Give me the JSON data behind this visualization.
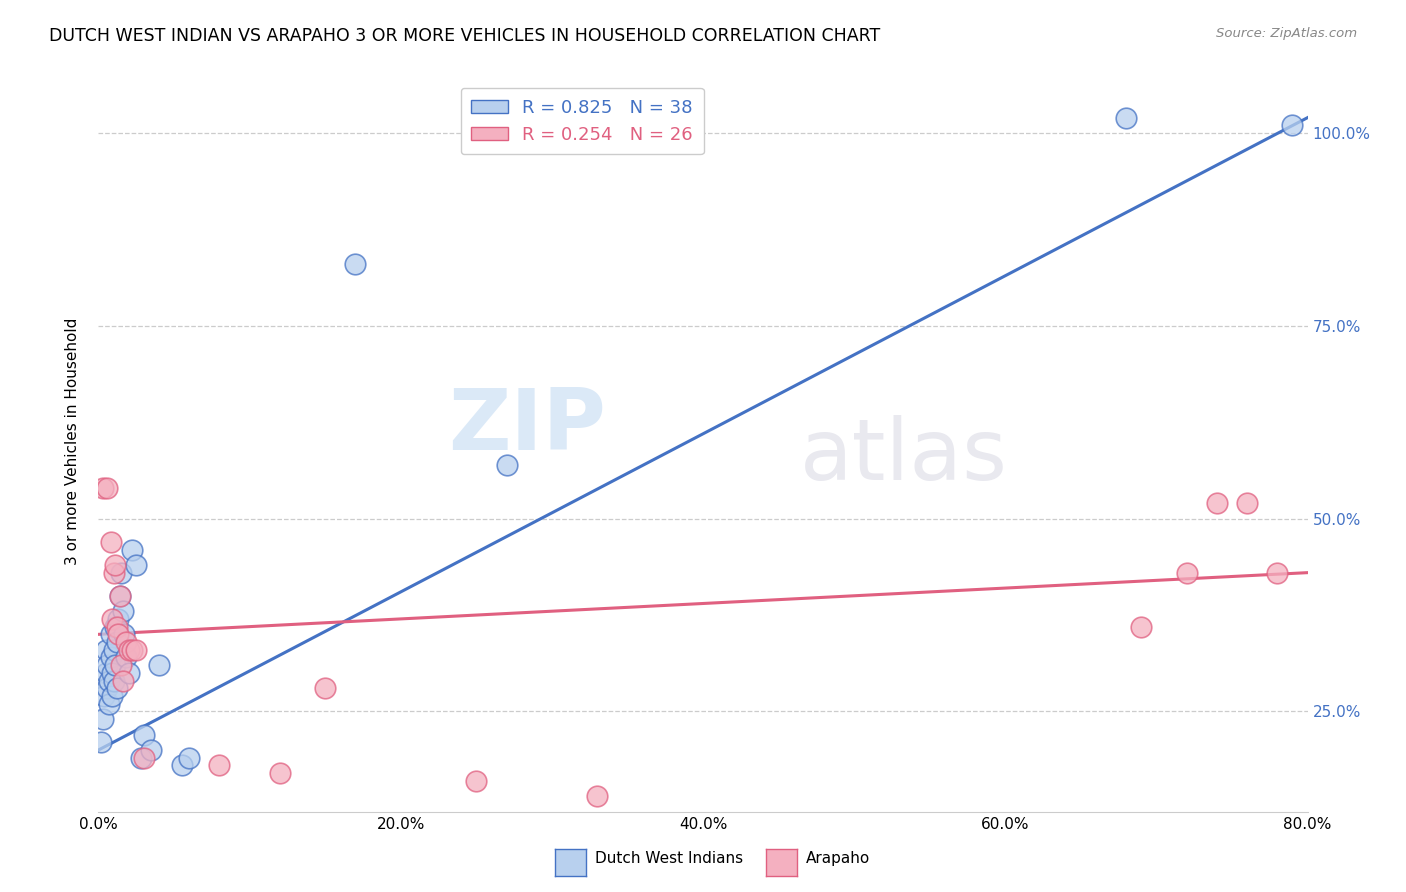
{
  "title": "DUTCH WEST INDIAN VS ARAPAHO 3 OR MORE VEHICLES IN HOUSEHOLD CORRELATION CHART",
  "source": "Source: ZipAtlas.com",
  "ylabel_label": "3 or more Vehicles in Household",
  "xmin": 0.0,
  "xmax": 0.8,
  "ymin": 0.12,
  "ymax": 1.08,
  "legend_label1": "Dutch West Indians",
  "legend_label2": "Arapaho",
  "R1": "0.825",
  "N1": "38",
  "R2": "0.254",
  "N2": "26",
  "color_blue": "#b8d0ee",
  "color_pink": "#f4b0c0",
  "line_color_blue": "#4472c4",
  "line_color_pink": "#e06080",
  "watermark_zip": "ZIP",
  "watermark_atlas": "atlas",
  "blue_dots": [
    [
      0.002,
      0.21
    ],
    [
      0.003,
      0.24
    ],
    [
      0.004,
      0.27
    ],
    [
      0.005,
      0.3
    ],
    [
      0.005,
      0.33
    ],
    [
      0.006,
      0.28
    ],
    [
      0.006,
      0.31
    ],
    [
      0.007,
      0.26
    ],
    [
      0.007,
      0.29
    ],
    [
      0.008,
      0.32
    ],
    [
      0.008,
      0.35
    ],
    [
      0.009,
      0.3
    ],
    [
      0.009,
      0.27
    ],
    [
      0.01,
      0.33
    ],
    [
      0.01,
      0.29
    ],
    [
      0.011,
      0.36
    ],
    [
      0.011,
      0.31
    ],
    [
      0.012,
      0.28
    ],
    [
      0.012,
      0.34
    ],
    [
      0.013,
      0.37
    ],
    [
      0.014,
      0.4
    ],
    [
      0.015,
      0.43
    ],
    [
      0.016,
      0.38
    ],
    [
      0.017,
      0.35
    ],
    [
      0.018,
      0.32
    ],
    [
      0.02,
      0.3
    ],
    [
      0.022,
      0.46
    ],
    [
      0.025,
      0.44
    ],
    [
      0.028,
      0.19
    ],
    [
      0.03,
      0.22
    ],
    [
      0.035,
      0.2
    ],
    [
      0.04,
      0.31
    ],
    [
      0.055,
      0.18
    ],
    [
      0.06,
      0.19
    ],
    [
      0.17,
      0.83
    ],
    [
      0.27,
      0.57
    ],
    [
      0.68,
      1.02
    ],
    [
      0.79,
      1.01
    ]
  ],
  "pink_dots": [
    [
      0.003,
      0.54
    ],
    [
      0.006,
      0.54
    ],
    [
      0.008,
      0.47
    ],
    [
      0.009,
      0.37
    ],
    [
      0.01,
      0.43
    ],
    [
      0.011,
      0.44
    ],
    [
      0.012,
      0.36
    ],
    [
      0.013,
      0.35
    ],
    [
      0.014,
      0.4
    ],
    [
      0.015,
      0.31
    ],
    [
      0.016,
      0.29
    ],
    [
      0.018,
      0.34
    ],
    [
      0.02,
      0.33
    ],
    [
      0.022,
      0.33
    ],
    [
      0.025,
      0.33
    ],
    [
      0.03,
      0.19
    ],
    [
      0.08,
      0.18
    ],
    [
      0.12,
      0.17
    ],
    [
      0.15,
      0.28
    ],
    [
      0.25,
      0.16
    ],
    [
      0.33,
      0.14
    ],
    [
      0.69,
      0.36
    ],
    [
      0.72,
      0.43
    ],
    [
      0.74,
      0.52
    ],
    [
      0.76,
      0.52
    ],
    [
      0.78,
      0.43
    ]
  ],
  "blue_line": [
    0.0,
    0.2,
    0.8,
    1.02
  ],
  "pink_line": [
    0.0,
    0.35,
    0.8,
    0.43
  ]
}
